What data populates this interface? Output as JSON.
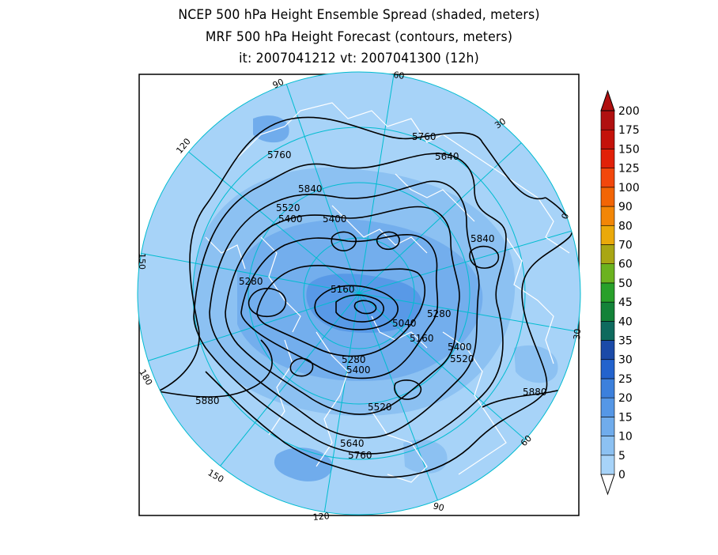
{
  "title": {
    "line1": "NCEP 500 hPa Height Ensemble Spread (shaded, meters)",
    "line2": "MRF 500 hPa Height Forecast (contours, meters)",
    "line3": "it: 2007041212      vt: 2007041300 (12h)"
  },
  "colorbar": {
    "levels": [
      "0",
      "5",
      "10",
      "15",
      "20",
      "25",
      "30",
      "35",
      "40",
      "45",
      "50",
      "60",
      "70",
      "80",
      "90",
      "100",
      "125",
      "150",
      "175",
      "200"
    ],
    "colors": [
      "#a7d3f8",
      "#8cc1f2",
      "#70acec",
      "#5597e6",
      "#3c80dc",
      "#2363cd",
      "#1b4aa8",
      "#0e6a5e",
      "#138238",
      "#28a02a",
      "#6bb21f",
      "#a9a614",
      "#eaa90a",
      "#f28606",
      "#f26505",
      "#f2470c",
      "#e12108",
      "#c4120a",
      "#b01010"
    ]
  },
  "map": {
    "colors": {
      "background_shade": "#a7d3f8",
      "spread_5_10": "#8cc1f2",
      "spread_10_15": "#70acec",
      "spread_15_20": "#5597e6",
      "grid": "#00bcd0",
      "coast": "#ffffff",
      "contour": "#000000"
    },
    "longitude_labels": [
      {
        "text": "60"
      },
      {
        "text": "30"
      },
      {
        "text": "0"
      },
      {
        "text": "30"
      },
      {
        "text": "60"
      },
      {
        "text": "90"
      },
      {
        "text": "120"
      },
      {
        "text": "150"
      },
      {
        "text": "180"
      },
      {
        "text": "150"
      },
      {
        "text": "120"
      },
      {
        "text": "90"
      }
    ],
    "contour_labels": [
      {
        "text": "5760"
      },
      {
        "text": "5640"
      },
      {
        "text": "5760"
      },
      {
        "text": "5840"
      },
      {
        "text": "5520"
      },
      {
        "text": "5400"
      },
      {
        "text": "5400"
      },
      {
        "text": "5840"
      },
      {
        "text": "5280"
      },
      {
        "text": "5160"
      },
      {
        "text": "5040"
      },
      {
        "text": "5280"
      },
      {
        "text": "5160"
      },
      {
        "text": "5400"
      },
      {
        "text": "5520"
      },
      {
        "text": "5280"
      },
      {
        "text": "5400"
      },
      {
        "text": "5880"
      },
      {
        "text": "5880"
      },
      {
        "text": "5520"
      },
      {
        "text": "5640"
      },
      {
        "text": "5760"
      }
    ]
  }
}
